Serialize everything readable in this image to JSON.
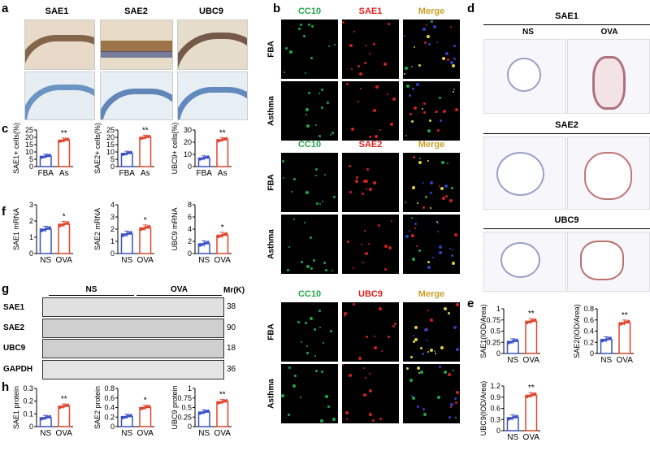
{
  "panel_labels": {
    "a": "a",
    "b": "b",
    "c": "c",
    "d": "d",
    "e": "e",
    "f": "f",
    "g": "g",
    "h": "h"
  },
  "panel_a": {
    "headers": [
      "SAE1",
      "SAE2",
      "UBC9"
    ]
  },
  "panel_b": {
    "blocks": [
      {
        "headers": [
          "CC10",
          "SAE1",
          "Merge"
        ],
        "header_colors": [
          "#21a64a",
          "#e02020",
          "#c8a028"
        ]
      },
      {
        "headers": [
          "CC10",
          "SAE2",
          "Merge"
        ],
        "header_colors": [
          "#21a64a",
          "#e02020",
          "#c8a028"
        ]
      },
      {
        "headers": [
          "CC10",
          "UBC9",
          "Merge"
        ],
        "header_colors": [
          "#21a64a",
          "#e02020",
          "#c8a028"
        ]
      }
    ],
    "rows": [
      "FBA",
      "Asthma"
    ]
  },
  "panel_d": {
    "sections": [
      {
        "title": "SAE1",
        "cols": [
          "NS",
          "OVA"
        ]
      },
      {
        "title": "SAE2"
      },
      {
        "title": "UBC9"
      }
    ]
  },
  "panel_g": {
    "groups": [
      "NS",
      "OVA"
    ],
    "mr_label": "Mr(K)",
    "bands": [
      {
        "name": "SAE1",
        "mw": "38"
      },
      {
        "name": "SAE2",
        "mw": "90"
      },
      {
        "name": "UBC9",
        "mw": "18"
      },
      {
        "name": "GAPDH",
        "mw": "36"
      }
    ]
  },
  "chart_data": [
    {
      "id": "c1",
      "type": "bar",
      "categories": [
        "FBA",
        "As"
      ],
      "values": [
        7,
        18
      ],
      "ylabel": "SAE1+ cells(%)",
      "ylim": [
        0,
        25
      ],
      "yticks": [
        0,
        5,
        10,
        15,
        20,
        25
      ],
      "sig": [
        "",
        "**"
      ],
      "colors": [
        "#3b50c8",
        "#e0442c"
      ]
    },
    {
      "id": "c2",
      "type": "bar",
      "categories": [
        "FBA",
        "As"
      ],
      "values": [
        9,
        20
      ],
      "ylabel": "SAE2+ cells(%)",
      "ylim": [
        0,
        25
      ],
      "yticks": [
        0,
        5,
        10,
        15,
        20,
        25
      ],
      "sig": [
        "",
        "**"
      ],
      "colors": [
        "#3b50c8",
        "#e0442c"
      ]
    },
    {
      "id": "c3",
      "type": "bar",
      "categories": [
        "FBA",
        "As"
      ],
      "values": [
        7,
        22
      ],
      "ylabel": "UBC9+ cells(%)",
      "ylim": [
        0,
        30
      ],
      "yticks": [
        0,
        10,
        20,
        30
      ],
      "sig": [
        "",
        "**"
      ],
      "colors": [
        "#3b50c8",
        "#e0442c"
      ]
    },
    {
      "id": "f1",
      "type": "bar",
      "categories": [
        "NS",
        "OVA"
      ],
      "values": [
        1.5,
        1.8
      ],
      "ylabel": "SAE1 mRNA",
      "ylim": [
        0,
        3
      ],
      "yticks": [
        0,
        1,
        2,
        3
      ],
      "sig": [
        "",
        "*"
      ],
      "colors": [
        "#3b50c8",
        "#e0442c"
      ]
    },
    {
      "id": "f2",
      "type": "bar",
      "categories": [
        "NS",
        "OVA"
      ],
      "values": [
        1.6,
        2.1
      ],
      "ylabel": "SAE2 mRNA",
      "ylim": [
        0,
        4
      ],
      "yticks": [
        0,
        1,
        2,
        3,
        4
      ],
      "sig": [
        "",
        "*"
      ],
      "colors": [
        "#3b50c8",
        "#e0442c"
      ]
    },
    {
      "id": "f3",
      "type": "bar",
      "categories": [
        "NS",
        "OVA"
      ],
      "values": [
        1.6,
        3.0
      ],
      "ylabel": "UBC9 mRNA",
      "ylim": [
        0,
        8
      ],
      "yticks": [
        0,
        2,
        4,
        6,
        8
      ],
      "sig": [
        "",
        "*"
      ],
      "colors": [
        "#3b50c8",
        "#e0442c"
      ]
    },
    {
      "id": "h1",
      "type": "bar",
      "categories": [
        "NS",
        "OVA"
      ],
      "values": [
        0.07,
        0.16
      ],
      "ylabel": "SAE1 protein",
      "ylim": [
        0,
        0.3
      ],
      "yticks": [
        0.0,
        0.1,
        0.2,
        0.3
      ],
      "sig": [
        "",
        "**"
      ],
      "colors": [
        "#3b50c8",
        "#e0442c"
      ]
    },
    {
      "id": "h2",
      "type": "bar",
      "categories": [
        "NS",
        "OVA"
      ],
      "values": [
        0.21,
        0.4
      ],
      "ylabel": "SAE2 protein",
      "ylim": [
        0,
        0.8
      ],
      "yticks": [
        0.0,
        0.2,
        0.4,
        0.6,
        0.8
      ],
      "sig": [
        "",
        "*"
      ],
      "colors": [
        "#3b50c8",
        "#e0442c"
      ]
    },
    {
      "id": "h3",
      "type": "bar",
      "categories": [
        "NS",
        "OVA"
      ],
      "values": [
        0.38,
        0.65
      ],
      "ylabel": "UBC9 protein",
      "ylim": [
        0,
        1.0
      ],
      "yticks": [
        0.0,
        0.25,
        0.5,
        0.75,
        1.0
      ],
      "sig": [
        "",
        "**"
      ],
      "colors": [
        "#3b50c8",
        "#e0442c"
      ]
    },
    {
      "id": "e1",
      "type": "bar",
      "categories": [
        "NS",
        "OVA"
      ],
      "values": [
        0.27,
        0.72
      ],
      "ylabel": "SAE1(IOD/Area)",
      "ylim": [
        0,
        1.0
      ],
      "yticks": [
        0.0,
        0.25,
        0.5,
        0.75,
        1.0
      ],
      "sig": [
        "",
        "**"
      ],
      "colors": [
        "#3b50c8",
        "#e0442c"
      ]
    },
    {
      "id": "e2",
      "type": "bar",
      "categories": [
        "NS",
        "OVA"
      ],
      "values": [
        0.25,
        0.55
      ],
      "ylabel": "SAE2(IOD/Area)",
      "ylim": [
        0,
        0.8
      ],
      "yticks": [
        0.0,
        0.2,
        0.4,
        0.6,
        0.8
      ],
      "sig": [
        "",
        "**"
      ],
      "colors": [
        "#3b50c8",
        "#e0442c"
      ]
    },
    {
      "id": "e3",
      "type": "bar",
      "categories": [
        "NS",
        "OVA"
      ],
      "values": [
        0.35,
        0.95
      ],
      "ylabel": "UBC9(IOD/Area)",
      "ylim": [
        0,
        1.2
      ],
      "yticks": [
        0.0,
        0.3,
        0.6,
        0.9,
        1.2
      ],
      "sig": [
        "",
        "**"
      ],
      "colors": [
        "#3b50c8",
        "#e0442c"
      ]
    }
  ]
}
